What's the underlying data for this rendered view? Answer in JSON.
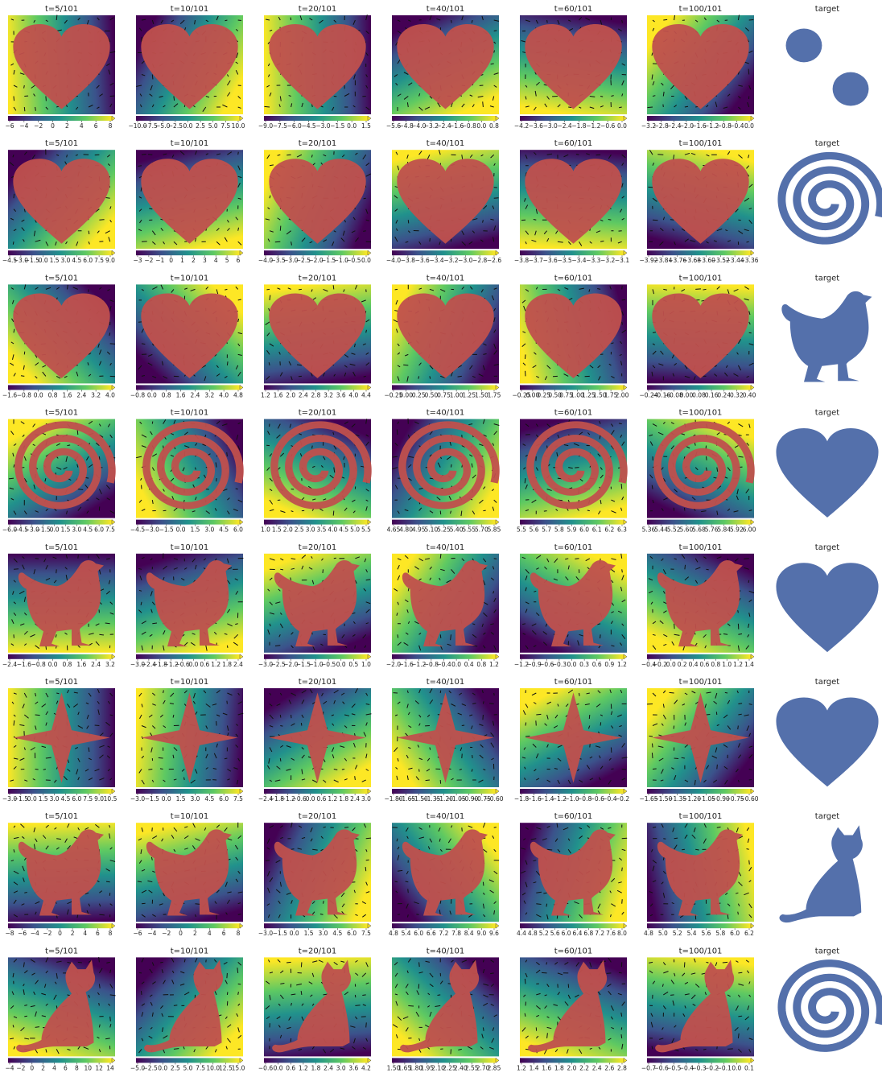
{
  "rows": [
    {
      "panels": [
        {
          "title": "t=5/101",
          "ticks": [
            "−6",
            "−4",
            "−2",
            "0",
            "2",
            "4",
            "6",
            "8"
          ]
        },
        {
          "title": "t=10/101",
          "ticks": [
            "−10.0",
            "−7.5",
            "−5.0",
            "−2.5",
            "0.0",
            "2.5",
            "5.0",
            "7.5",
            "10.0"
          ]
        },
        {
          "title": "t=20/101",
          "ticks": [
            "−9.0",
            "−7.5",
            "−6.0",
            "−4.5",
            "−3.0",
            "−1.5",
            "0.0",
            "1.5"
          ]
        },
        {
          "title": "t=40/101",
          "ticks": [
            "−5.6",
            "−4.8",
            "−4.0",
            "−3.2",
            "−2.4",
            "−1.6",
            "−0.8",
            "0.0",
            "0.8"
          ]
        },
        {
          "title": "t=60/101",
          "ticks": [
            "−4.2",
            "−3.6",
            "−3.0",
            "−2.4",
            "−1.8",
            "−1.2",
            "−0.6",
            "0.0"
          ]
        },
        {
          "title": "t=100/101",
          "ticks": [
            "−3.2",
            "−2.8",
            "−2.4",
            "−2.0",
            "−1.6",
            "−1.2",
            "−0.8",
            "−0.4",
            "0.0"
          ]
        }
      ],
      "target": "target"
    },
    {
      "panels": [
        {
          "title": "t=5/101",
          "ticks": [
            "−4.5",
            "−3.0",
            "−1.5",
            "0.0",
            "1.5",
            "3.0",
            "4.5",
            "6.0",
            "7.5",
            "9.0"
          ]
        },
        {
          "title": "t=10/101",
          "ticks": [
            "−3",
            "−2",
            "−1",
            "0",
            "1",
            "2",
            "3",
            "4",
            "5",
            "6"
          ]
        },
        {
          "title": "t=20/101",
          "ticks": [
            "−4.0",
            "−3.5",
            "−3.0",
            "−2.5",
            "−2.0",
            "−1.5",
            "−1.0",
            "−0.5",
            "0.0"
          ]
        },
        {
          "title": "t=40/101",
          "ticks": [
            "−4.0",
            "−3.8",
            "−3.6",
            "−3.4",
            "−3.2",
            "−3.0",
            "−2.8",
            "−2.6"
          ]
        },
        {
          "title": "t=60/101",
          "ticks": [
            "−3.8",
            "−3.7",
            "−3.6",
            "−3.5",
            "−3.4",
            "−3.3",
            "−3.2",
            "−3.1"
          ]
        },
        {
          "title": "t=100/101",
          "ticks": [
            "−3.92",
            "−3.84",
            "−3.76",
            "−3.68",
            "−3.60",
            "−3.52",
            "−3.44",
            "−3.36"
          ]
        }
      ],
      "target": "target"
    },
    {
      "panels": [
        {
          "title": "t=5/101",
          "ticks": [
            "−1.6",
            "−0.8",
            "0.0",
            "0.8",
            "1.6",
            "2.4",
            "3.2",
            "4.0"
          ]
        },
        {
          "title": "t=10/101",
          "ticks": [
            "−0.8",
            "0.0",
            "0.8",
            "1.6",
            "2.4",
            "3.2",
            "4.0",
            "4.8"
          ]
        },
        {
          "title": "t=20/101",
          "ticks": [
            "1.2",
            "1.6",
            "2.0",
            "2.4",
            "2.8",
            "3.2",
            "3.6",
            "4.0",
            "4.4"
          ]
        },
        {
          "title": "t=40/101",
          "ticks": [
            "−0.25",
            "0.00",
            "0.25",
            "0.50",
            "0.75",
            "1.00",
            "1.25",
            "1.50",
            "1.75"
          ]
        },
        {
          "title": "t=60/101",
          "ticks": [
            "−0.25",
            "0.00",
            "0.25",
            "0.50",
            "0.75",
            "1.00",
            "1.25",
            "1.50",
            "1.75",
            "2.00"
          ]
        },
        {
          "title": "t=100/101",
          "ticks": [
            "−0.24",
            "−0.16",
            "−0.08",
            "0.00",
            "0.08",
            "0.16",
            "0.24",
            "0.32",
            "0.40"
          ]
        }
      ],
      "target": "target"
    },
    {
      "panels": [
        {
          "title": "t=5/101",
          "ticks": [
            "−6.0",
            "−4.5",
            "−3.0",
            "−1.5",
            "0.0",
            "1.5",
            "3.0",
            "4.5",
            "6.0",
            "7.5"
          ]
        },
        {
          "title": "t=10/101",
          "ticks": [
            "−4.5",
            "−3.0",
            "−1.5",
            "0.0",
            "1.5",
            "3.0",
            "4.5",
            "6.0"
          ]
        },
        {
          "title": "t=20/101",
          "ticks": [
            "1.0",
            "1.5",
            "2.0",
            "2.5",
            "3.0",
            "3.5",
            "4.0",
            "4.5",
            "5.0",
            "5.5"
          ]
        },
        {
          "title": "t=40/101",
          "ticks": [
            "4.65",
            "4.80",
            "4.95",
            "5.10",
            "5.25",
            "5.40",
            "5.55",
            "5.70",
            "5.85"
          ]
        },
        {
          "title": "t=60/101",
          "ticks": [
            "5.5",
            "5.6",
            "5.7",
            "5.8",
            "5.9",
            "6.0",
            "6.1",
            "6.2",
            "6.3"
          ]
        },
        {
          "title": "t=100/101",
          "ticks": [
            "5.36",
            "5.44",
            "5.52",
            "5.60",
            "5.68",
            "5.76",
            "5.84",
            "5.92",
            "6.00"
          ]
        }
      ],
      "target": "target"
    },
    {
      "panels": [
        {
          "title": "t=5/101",
          "ticks": [
            "−2.4",
            "−1.6",
            "−0.8",
            "0.0",
            "0.8",
            "1.6",
            "2.4",
            "3.2"
          ]
        },
        {
          "title": "t=10/101",
          "ticks": [
            "−3.0",
            "−2.4",
            "−1.8",
            "−1.2",
            "−0.6",
            "0.0",
            "0.6",
            "1.2",
            "1.8",
            "2.4"
          ]
        },
        {
          "title": "t=20/101",
          "ticks": [
            "−3.0",
            "−2.5",
            "−2.0",
            "−1.5",
            "−1.0",
            "−0.5",
            "0.0",
            "0.5",
            "1.0"
          ]
        },
        {
          "title": "t=40/101",
          "ticks": [
            "−2.0",
            "−1.6",
            "−1.2",
            "−0.8",
            "−0.4",
            "0.0",
            "0.4",
            "0.8",
            "1.2"
          ]
        },
        {
          "title": "t=60/101",
          "ticks": [
            "−1.2",
            "−0.9",
            "−0.6",
            "−0.3",
            "0.0",
            "0.3",
            "0.6",
            "0.9",
            "1.2"
          ]
        },
        {
          "title": "t=100/101",
          "ticks": [
            "−0.4",
            "−0.2",
            "0.0",
            "0.2",
            "0.4",
            "0.6",
            "0.8",
            "1.0",
            "1.2",
            "1.4"
          ]
        }
      ],
      "target": "target"
    },
    {
      "panels": [
        {
          "title": "t=5/101",
          "ticks": [
            "−3.0",
            "−1.5",
            "0.0",
            "1.5",
            "3.0",
            "4.5",
            "6.0",
            "7.5",
            "9.0",
            "10.5"
          ]
        },
        {
          "title": "t=10/101",
          "ticks": [
            "−3.0",
            "−1.5",
            "0.0",
            "1.5",
            "3.0",
            "4.5",
            "6.0",
            "7.5"
          ]
        },
        {
          "title": "t=20/101",
          "ticks": [
            "−2.4",
            "−1.8",
            "−1.2",
            "−0.6",
            "0.0",
            "0.6",
            "1.2",
            "1.8",
            "2.4",
            "3.0"
          ]
        },
        {
          "title": "t=40/101",
          "ticks": [
            "−1.80",
            "−1.65",
            "−1.50",
            "−1.35",
            "−1.20",
            "−1.05",
            "−0.90",
            "−0.75",
            "−0.60"
          ]
        },
        {
          "title": "t=60/101",
          "ticks": [
            "−1.8",
            "−1.6",
            "−1.4",
            "−1.2",
            "−1.0",
            "−0.8",
            "−0.6",
            "−0.4",
            "−0.2"
          ]
        },
        {
          "title": "t=100/101",
          "ticks": [
            "−1.65",
            "−1.50",
            "−1.35",
            "−1.20",
            "−1.05",
            "−0.90",
            "−0.75",
            "−0.60"
          ]
        }
      ],
      "target": "target"
    },
    {
      "panels": [
        {
          "title": "t=5/101",
          "ticks": [
            "−8",
            "−6",
            "−4",
            "−2",
            "0",
            "2",
            "4",
            "6",
            "8"
          ]
        },
        {
          "title": "t=10/101",
          "ticks": [
            "−6",
            "−4",
            "−2",
            "0",
            "2",
            "4",
            "6",
            "8"
          ]
        },
        {
          "title": "t=20/101",
          "ticks": [
            "−3.0",
            "−1.5",
            "0.0",
            "1.5",
            "3.0",
            "4.5",
            "6.0",
            "7.5"
          ]
        },
        {
          "title": "t=40/101",
          "ticks": [
            "4.8",
            "5.4",
            "6.0",
            "6.6",
            "7.2",
            "7.8",
            "8.4",
            "9.0",
            "9.6"
          ]
        },
        {
          "title": "t=60/101",
          "ticks": [
            "4.4",
            "4.8",
            "5.2",
            "5.6",
            "6.0",
            "6.4",
            "6.8",
            "7.2",
            "7.6",
            "8.0"
          ]
        },
        {
          "title": "t=100/101",
          "ticks": [
            "4.8",
            "5.0",
            "5.2",
            "5.4",
            "5.6",
            "5.8",
            "6.0",
            "6.2"
          ]
        }
      ],
      "target": "target"
    },
    {
      "panels": [
        {
          "title": "t=5/101",
          "ticks": [
            "−4",
            "−2",
            "0",
            "2",
            "4",
            "6",
            "8",
            "10",
            "12",
            "14"
          ]
        },
        {
          "title": "t=10/101",
          "ticks": [
            "−5.0",
            "−2.5",
            "0.0",
            "2.5",
            "5.0",
            "7.5",
            "10.0",
            "12.5",
            "15.0"
          ]
        },
        {
          "title": "t=20/101",
          "ticks": [
            "−0.6",
            "0.0",
            "0.6",
            "1.2",
            "1.8",
            "2.4",
            "3.0",
            "3.6",
            "4.2"
          ]
        },
        {
          "title": "t=40/101",
          "ticks": [
            "1.50",
            "1.65",
            "1.80",
            "1.95",
            "2.10",
            "2.25",
            "2.40",
            "2.55",
            "2.70",
            "2.85"
          ]
        },
        {
          "title": "t=60/101",
          "ticks": [
            "1.2",
            "1.4",
            "1.6",
            "1.8",
            "2.0",
            "2.2",
            "2.4",
            "2.6",
            "2.8"
          ]
        },
        {
          "title": "t=100/101",
          "ticks": [
            "−0.7",
            "−0.6",
            "−0.5",
            "−0.4",
            "−0.3",
            "−0.2",
            "−0.1",
            "0.0",
            "0.1"
          ]
        }
      ],
      "target": "target"
    }
  ]
}
